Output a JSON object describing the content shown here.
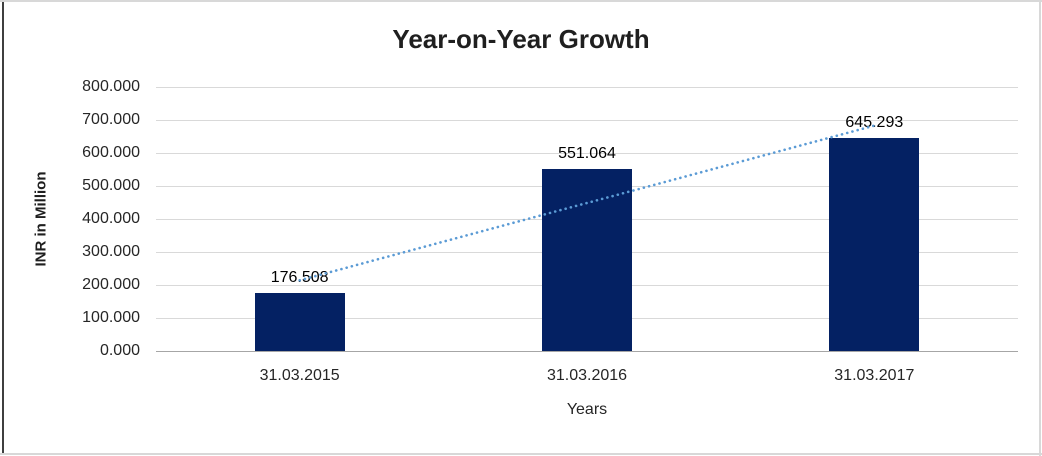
{
  "chart_data": {
    "type": "bar",
    "title": "Year-on-Year Growth",
    "xlabel": "Years",
    "ylabel": "INR in Million",
    "categories": [
      "31.03.2015",
      "31.03.2016",
      "31.03.2017"
    ],
    "values": [
      176.508,
      551.064,
      645.293
    ],
    "data_labels": [
      "176.508",
      "551.064",
      "645.293"
    ],
    "ylim": [
      0,
      800
    ],
    "ytick_step": 100,
    "ytick_labels": [
      "0.000",
      "100.000",
      "200.000",
      "300.000",
      "400.000",
      "500.000",
      "600.000",
      "700.000",
      "800.000"
    ],
    "grid": "horizontal-only",
    "legend": "none",
    "bar_color": "#042163",
    "trendline": {
      "kind": "linear",
      "style": "dotted",
      "color": "#5b9bd5"
    }
  }
}
